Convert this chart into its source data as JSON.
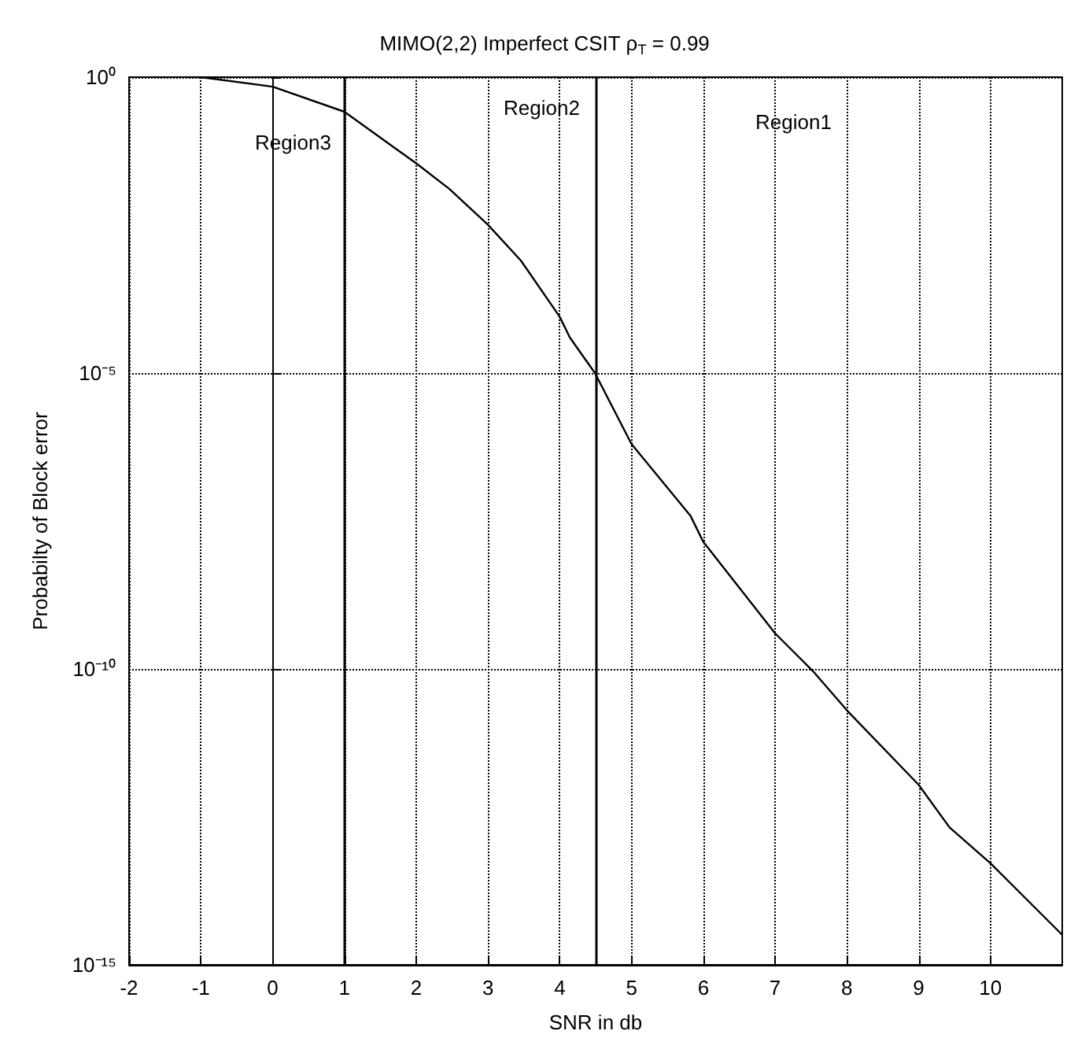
{
  "chart_data": {
    "type": "line",
    "title": "MIMO(2,2) Imperfect CSIT ρ$_{T}$ = 0.99",
    "xlabel": "SNR in db",
    "ylabel": "Probabilty of Block error",
    "series": [
      {
        "color": "#000000",
        "x": [
          -1.15,
          -1,
          0,
          1,
          2,
          2.46,
          3,
          3.46,
          4,
          4.14,
          4.49,
          5,
          5.82,
          6,
          7,
          7.53,
          8,
          9,
          9.43,
          10,
          10.99
        ],
        "values": [
          1,
          1,
          0.69,
          0.26,
          0.035,
          0.013,
          0.0032,
          0.00079,
          8.9e-05,
          4e-05,
          1e-05,
          6.3e-07,
          3.9e-08,
          1.4e-08,
          4e-10,
          9.1e-11,
          2e-11,
          1.1e-12,
          2.1e-13,
          5.2e-14,
          3.3e-15
        ]
      }
    ],
    "log": "y",
    "xlim": [
      -2,
      11
    ],
    "xticks": [
      -2,
      -1,
      0,
      1,
      2,
      3,
      4,
      5,
      6,
      7,
      8,
      9,
      10
    ],
    "ylim": [
      1e-15,
      1
    ],
    "yticks": [
      {
        "value": 1e-15,
        "label": "10⁻¹⁵"
      },
      {
        "value": 1e-10,
        "label": "10⁻¹⁰"
      },
      {
        "value": 1e-05,
        "label": "10⁻⁵"
      },
      {
        "value": 1,
        "label": "10⁰"
      }
    ],
    "grid": true,
    "line_style": "solid",
    "marker": "none",
    "ref_lines": [
      {
        "axis": "x",
        "value": 1,
        "color": "#000000"
      },
      {
        "axis": "x",
        "value": 4.5,
        "color": "#000000"
      }
    ],
    "annotations": [
      "Region3",
      "Region2",
      "Region1"
    ]
  }
}
